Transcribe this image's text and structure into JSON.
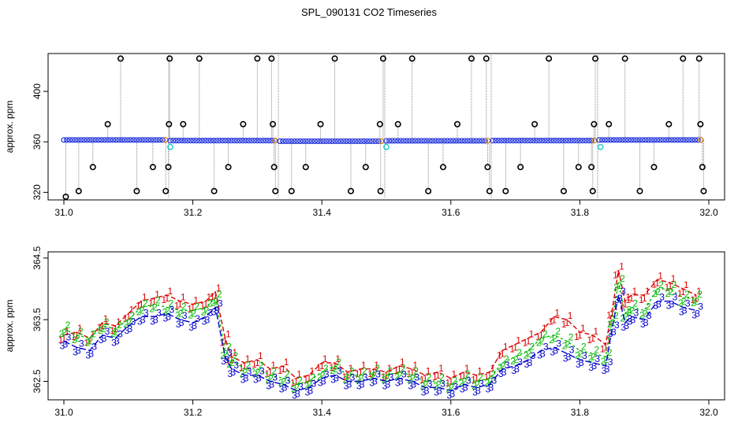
{
  "title": "SPL_090131  CO2 Timeseries",
  "colors": {
    "frame": "#000000",
    "series1": "#dd0000",
    "series2": "#00bb00",
    "series3": "#0000cc",
    "top_marker": "#2233dd",
    "top_outlier": "#000000",
    "top_cyan": "#22cccc",
    "top_orange": "#dd8800",
    "vline": "#888888"
  },
  "chart_data": [
    {
      "type": "scatter",
      "title": "",
      "ylabel": "approx. ppm",
      "xlabel": "",
      "xlim": [
        31.0,
        32.0
      ],
      "ylim": [
        314,
        430
      ],
      "xticks": [
        "31.0",
        "31.2",
        "31.4",
        "31.6",
        "31.8",
        "32.0"
      ],
      "yticks": [
        "320",
        "360",
        "400"
      ],
      "baseline_segments": [
        {
          "x": [
            31.0,
            31.16
          ],
          "y": [
            361.5,
            361.5
          ]
        },
        {
          "x": [
            31.165,
            31.33
          ],
          "y": [
            361.0,
            361.0
          ]
        },
        {
          "x": [
            31.335,
            31.495
          ],
          "y": [
            360.5,
            360.5
          ]
        },
        {
          "x": [
            31.5,
            31.66
          ],
          "y": [
            360.8,
            360.8
          ]
        },
        {
          "x": [
            31.665,
            31.825
          ],
          "y": [
            361.0,
            361.0
          ]
        },
        {
          "x": [
            31.83,
            31.99
          ],
          "y": [
            361.5,
            361.5
          ]
        }
      ],
      "outliers": [
        {
          "x": 31.003,
          "y": 314
        },
        {
          "x": 31.023,
          "y": 321
        },
        {
          "x": 31.045,
          "y": 340
        },
        {
          "x": 31.068,
          "y": 374
        },
        {
          "x": 31.088,
          "y": 426
        },
        {
          "x": 31.113,
          "y": 321
        },
        {
          "x": 31.138,
          "y": 340
        },
        {
          "x": 31.158,
          "y": 321
        },
        {
          "x": 31.162,
          "y": 340
        },
        {
          "x": 31.163,
          "y": 374
        },
        {
          "x": 31.164,
          "y": 426
        },
        {
          "x": 31.185,
          "y": 374
        },
        {
          "x": 31.21,
          "y": 426
        },
        {
          "x": 31.233,
          "y": 321
        },
        {
          "x": 31.255,
          "y": 340
        },
        {
          "x": 31.278,
          "y": 374
        },
        {
          "x": 31.3,
          "y": 426
        },
        {
          "x": 31.322,
          "y": 426
        },
        {
          "x": 31.324,
          "y": 374
        },
        {
          "x": 31.326,
          "y": 340
        },
        {
          "x": 31.328,
          "y": 321
        },
        {
          "x": 31.353,
          "y": 321
        },
        {
          "x": 31.375,
          "y": 340
        },
        {
          "x": 31.398,
          "y": 374
        },
        {
          "x": 31.42,
          "y": 426
        },
        {
          "x": 31.445,
          "y": 321
        },
        {
          "x": 31.468,
          "y": 340
        },
        {
          "x": 31.49,
          "y": 374
        },
        {
          "x": 31.491,
          "y": 321
        },
        {
          "x": 31.495,
          "y": 426
        },
        {
          "x": 31.518,
          "y": 374
        },
        {
          "x": 31.54,
          "y": 426
        },
        {
          "x": 31.565,
          "y": 321
        },
        {
          "x": 31.588,
          "y": 340
        },
        {
          "x": 31.61,
          "y": 374
        },
        {
          "x": 31.632,
          "y": 426
        },
        {
          "x": 31.655,
          "y": 426
        },
        {
          "x": 31.657,
          "y": 340
        },
        {
          "x": 31.66,
          "y": 321
        },
        {
          "x": 31.685,
          "y": 321
        },
        {
          "x": 31.708,
          "y": 340
        },
        {
          "x": 31.73,
          "y": 374
        },
        {
          "x": 31.752,
          "y": 426
        },
        {
          "x": 31.775,
          "y": 321
        },
        {
          "x": 31.798,
          "y": 340
        },
        {
          "x": 31.818,
          "y": 340
        },
        {
          "x": 31.82,
          "y": 321
        },
        {
          "x": 31.822,
          "y": 374
        },
        {
          "x": 31.824,
          "y": 426
        },
        {
          "x": 31.845,
          "y": 374
        },
        {
          "x": 31.87,
          "y": 426
        },
        {
          "x": 31.893,
          "y": 321
        },
        {
          "x": 31.915,
          "y": 340
        },
        {
          "x": 31.938,
          "y": 374
        },
        {
          "x": 31.96,
          "y": 426
        },
        {
          "x": 31.985,
          "y": 426
        },
        {
          "x": 31.987,
          "y": 374
        },
        {
          "x": 31.99,
          "y": 340
        },
        {
          "x": 31.992,
          "y": 321
        }
      ],
      "cyan_points": [
        {
          "x": 31.165,
          "y": 356
        },
        {
          "x": 31.5,
          "y": 356
        },
        {
          "x": 31.832,
          "y": 356
        }
      ],
      "marker_spacing": 0.0045
    },
    {
      "type": "line",
      "title": "",
      "ylabel": "approx. ppm",
      "xlabel": "",
      "xlim": [
        31.0,
        32.0
      ],
      "ylim": [
        362.2,
        364.6
      ],
      "xticks": [
        "31.0",
        "31.2",
        "31.4",
        "31.6",
        "31.8",
        "32.0"
      ],
      "yticks": [
        "362.5",
        "363.5",
        "364.5"
      ],
      "x": [
        31.0,
        31.02,
        31.04,
        31.06,
        31.08,
        31.1,
        31.12,
        31.14,
        31.16,
        31.18,
        31.2,
        31.22,
        31.235,
        31.25,
        31.26,
        31.28,
        31.3,
        31.32,
        31.34,
        31.36,
        31.38,
        31.4,
        31.42,
        31.44,
        31.46,
        31.48,
        31.5,
        31.52,
        31.54,
        31.56,
        31.58,
        31.6,
        31.62,
        31.64,
        31.66,
        31.68,
        31.7,
        31.72,
        31.74,
        31.76,
        31.78,
        31.8,
        31.82,
        31.84,
        31.85,
        31.86,
        31.87,
        31.88,
        31.9,
        31.92,
        31.94,
        31.96,
        31.98
      ],
      "series": [
        {
          "name": "1",
          "values": [
            363.25,
            363.3,
            363.2,
            363.45,
            363.4,
            363.6,
            363.8,
            363.85,
            363.9,
            363.8,
            363.75,
            363.8,
            363.95,
            363.2,
            362.9,
            362.8,
            362.85,
            362.7,
            362.75,
            362.55,
            362.6,
            362.8,
            362.8,
            362.65,
            362.7,
            362.7,
            362.65,
            362.75,
            362.7,
            362.6,
            362.65,
            362.55,
            362.65,
            362.6,
            362.65,
            363.0,
            363.1,
            363.2,
            363.3,
            363.55,
            363.5,
            363.3,
            363.25,
            363.1,
            363.65,
            364.3,
            363.8,
            363.9,
            363.9,
            364.15,
            364.1,
            364.0,
            363.9
          ]
        },
        {
          "name": "2",
          "values": [
            363.35,
            363.25,
            363.2,
            363.4,
            363.35,
            363.5,
            363.7,
            363.75,
            363.7,
            363.65,
            363.65,
            363.7,
            363.85,
            363.0,
            362.85,
            362.7,
            362.7,
            362.6,
            362.55,
            362.45,
            362.5,
            362.65,
            362.75,
            362.6,
            362.6,
            362.65,
            362.6,
            362.65,
            362.6,
            362.5,
            362.5,
            362.45,
            362.55,
            362.5,
            362.55,
            362.8,
            362.9,
            363.0,
            363.2,
            363.25,
            363.15,
            363.0,
            362.95,
            362.9,
            363.5,
            364.1,
            363.6,
            363.7,
            363.65,
            364.0,
            364.0,
            363.85,
            363.85
          ]
        },
        {
          "name": "3",
          "values": [
            363.15,
            363.05,
            363.0,
            363.25,
            363.2,
            363.4,
            363.55,
            363.55,
            363.6,
            363.5,
            363.45,
            363.55,
            363.7,
            362.9,
            362.7,
            362.6,
            362.6,
            362.5,
            362.45,
            362.35,
            362.4,
            362.55,
            362.6,
            362.5,
            362.5,
            362.55,
            362.5,
            362.55,
            362.5,
            362.4,
            362.4,
            362.35,
            362.45,
            362.4,
            362.45,
            362.7,
            362.75,
            362.85,
            363.0,
            363.05,
            362.95,
            362.85,
            362.8,
            362.75,
            363.35,
            363.9,
            363.45,
            363.55,
            363.5,
            363.8,
            363.8,
            363.7,
            363.65
          ]
        }
      ]
    }
  ]
}
